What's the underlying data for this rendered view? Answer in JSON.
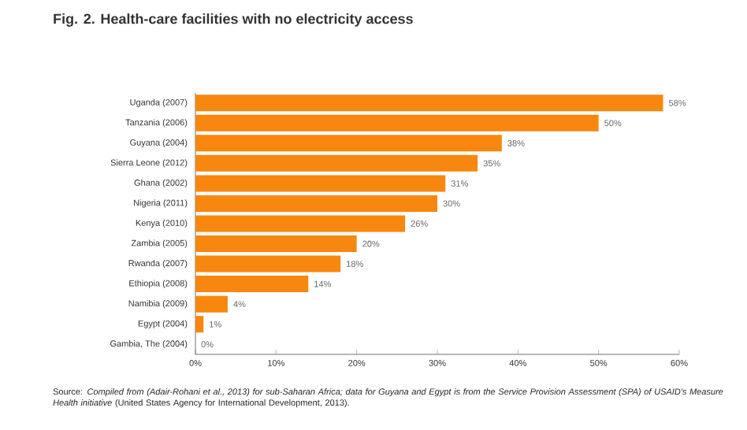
{
  "chart_data": {
    "type": "bar",
    "orientation": "horizontal",
    "title": "Fig. 2. Health-care facilities with no electricity access",
    "categories": [
      "Uganda (2007)",
      "Tanzania (2006)",
      "Guyana (2004)",
      "Sierra Leone (2012)",
      "Ghana (2002)",
      "Nigeria (2011)",
      "Kenya (2010)",
      "Zambia (2005)",
      "Rwanda (2007)",
      "Ethiopia (2008)",
      "Namibia (2009)",
      "Egypt (2004)",
      "Gambia, The (2004)"
    ],
    "values": [
      58,
      50,
      38,
      35,
      31,
      30,
      26,
      20,
      18,
      14,
      4,
      1,
      0
    ],
    "value_labels": [
      "58%",
      "50%",
      "38%",
      "35%",
      "31%",
      "30%",
      "26%",
      "20%",
      "18%",
      "14%",
      "4%",
      "1%",
      "0%"
    ],
    "color": "#f7870f",
    "xlim": [
      0,
      60
    ],
    "xticks": [
      {
        "value": 0,
        "label": "0%"
      },
      {
        "value": 10,
        "label": "10%"
      },
      {
        "value": 20,
        "label": "20%"
      },
      {
        "value": 30,
        "label": "30%"
      },
      {
        "value": 40,
        "label": "40%"
      },
      {
        "value": 50,
        "label": "50%"
      },
      {
        "value": 60,
        "label": "60%"
      }
    ],
    "annotations": [
      "Source: *Compiled from (Adair-Rohani et al., 2013) for sub-Saharan Africa; data for Guyana and Egypt is from the Service Provision Assessment (SPA) of USAID's Measure Health initiative* (United States Agency for International Development, 2013)."
    ]
  }
}
